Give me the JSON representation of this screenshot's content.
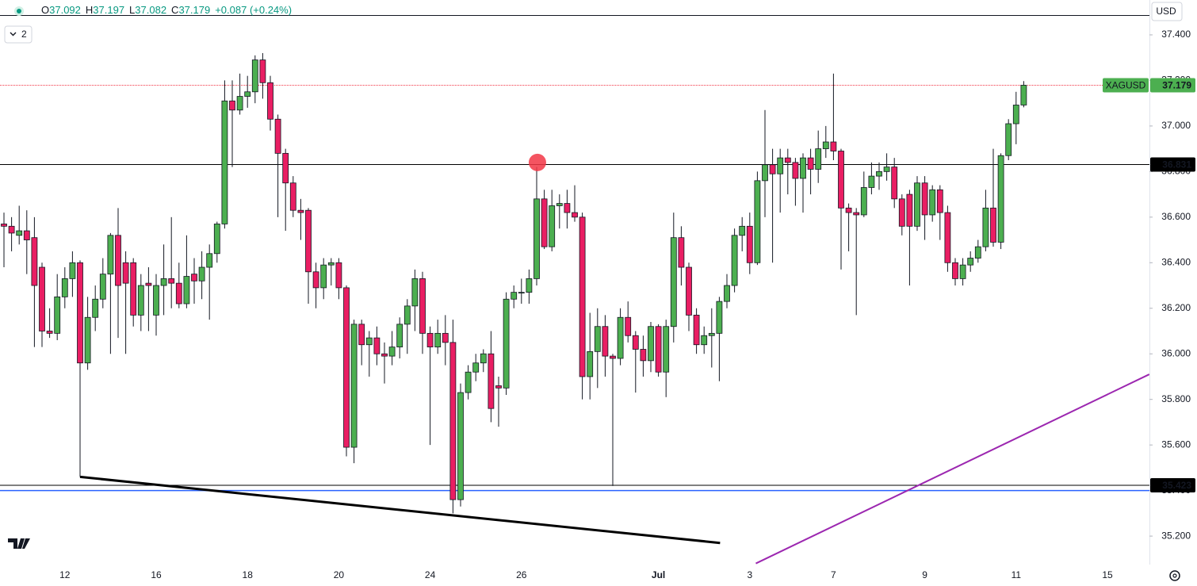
{
  "chart_data": {
    "type": "candlestick",
    "symbol": "XAGUSD",
    "currency": "USD",
    "indicator_count": 2,
    "header": {
      "items": [
        {
          "label": "O",
          "value": "37.092"
        },
        {
          "label": "H",
          "value": "37.197"
        },
        {
          "label": "L",
          "value": "37.082"
        },
        {
          "label": "C",
          "value": "37.179"
        }
      ],
      "change": "+0.087 (+0.24%)"
    },
    "up_color": "#4caf50",
    "down_color": "#e91e63",
    "grid": false,
    "categories": [
      null,
      null,
      null,
      null,
      null,
      null,
      null,
      null,
      "12",
      null,
      null,
      null,
      null,
      null,
      null,
      null,
      null,
      null,
      null,
      null,
      "16",
      null,
      null,
      null,
      null,
      null,
      null,
      null,
      null,
      null,
      null,
      null,
      "18",
      null,
      null,
      null,
      null,
      null,
      null,
      null,
      null,
      null,
      null,
      null,
      "20",
      null,
      null,
      null,
      null,
      null,
      null,
      null,
      null,
      null,
      null,
      null,
      "24",
      null,
      null,
      null,
      null,
      null,
      null,
      null,
      null,
      null,
      null,
      null,
      "26",
      null,
      null,
      null,
      null,
      null,
      null,
      null,
      null,
      null,
      null,
      null,
      null,
      null,
      null,
      null,
      null,
      null,
      "Jul",
      null,
      null,
      null,
      null,
      null,
      null,
      null,
      null,
      null,
      null,
      null,
      "3",
      null,
      null,
      null,
      null,
      null,
      null,
      null,
      null,
      null,
      null,
      "7",
      null,
      null,
      null,
      null,
      null,
      null,
      null,
      null,
      null,
      null,
      null,
      "9",
      null,
      null,
      null,
      null,
      null,
      null,
      null,
      null,
      null,
      null,
      null,
      "11",
      null,
      null,
      null,
      null,
      null,
      null,
      null,
      null,
      null,
      null,
      null,
      "15"
    ],
    "open": [
      36.57,
      36.56,
      36.52,
      36.54,
      36.51,
      36.38,
      36.1,
      36.09,
      36.25,
      36.33,
      36.4,
      35.96,
      36.16,
      36.24,
      36.35,
      36.52,
      36.4,
      36.4,
      36.17,
      36.31,
      36.17,
      36.3,
      36.33,
      36.31,
      36.22,
      36.35,
      36.32,
      36.38,
      36.44,
      36.57,
      37.11,
      37.07,
      37.13,
      37.15,
      37.29,
      37.19,
      37.03,
      36.88,
      36.75,
      36.63,
      36.63,
      36.36,
      36.29,
      36.39,
      36.4,
      36.29,
      35.59,
      36.13,
      36.04,
      36.07,
      36.0,
      35.99,
      36.03,
      36.13,
      36.21,
      36.33,
      36.09,
      36.03,
      36.09,
      36.05,
      35.36,
      35.83,
      35.92,
      35.96,
      36.0,
      35.86,
      35.85,
      36.24,
      36.27,
      36.27,
      36.33,
      36.68,
      36.47,
      36.65,
      36.66,
      36.62,
      36.6,
      35.9,
      36.01,
      36.12,
      35.99,
      35.98,
      36.16,
      36.08,
      36.02,
      35.97,
      36.12,
      35.92,
      36.12,
      36.51,
      36.38,
      36.17,
      36.04,
      36.08,
      36.09,
      36.23,
      36.3,
      36.52,
      36.56,
      36.4,
      36.76,
      36.83,
      36.79,
      36.86,
      36.84,
      36.77,
      36.86,
      36.81,
      36.9,
      36.93,
      36.89,
      36.64,
      36.62,
      36.61,
      36.73,
      36.78,
      36.8,
      36.82,
      36.68,
      36.7,
      36.56,
      36.75,
      36.61,
      36.72,
      36.62,
      36.4,
      36.33,
      36.39,
      36.42,
      36.47,
      36.64,
      36.49,
      36.87,
      37.01,
      37.092,
      null,
      null,
      null,
      null,
      null,
      null,
      null,
      null,
      null,
      null,
      null
    ],
    "high": [
      36.62,
      36.6,
      36.65,
      36.63,
      36.6,
      36.4,
      36.2,
      36.35,
      36.38,
      36.45,
      36.41,
      36.25,
      36.3,
      36.42,
      36.53,
      36.64,
      36.45,
      36.42,
      36.35,
      36.38,
      36.35,
      36.48,
      36.6,
      36.4,
      36.52,
      36.42,
      36.45,
      36.48,
      36.58,
      37.2,
      37.2,
      37.23,
      37.22,
      37.31,
      37.32,
      37.22,
      37.05,
      36.9,
      36.78,
      36.68,
      36.64,
      36.4,
      36.42,
      36.42,
      36.42,
      36.3,
      36.15,
      36.15,
      36.1,
      36.12,
      36.05,
      36.1,
      36.16,
      36.24,
      36.37,
      36.36,
      36.12,
      36.15,
      36.17,
      36.15,
      35.87,
      35.95,
      36.0,
      36.02,
      36.1,
      35.9,
      36.27,
      36.3,
      36.33,
      36.37,
      36.82,
      36.72,
      36.72,
      36.7,
      36.72,
      36.74,
      36.62,
      36.18,
      36.2,
      36.17,
      36.0,
      36.2,
      36.23,
      36.1,
      36.08,
      36.14,
      36.13,
      36.15,
      36.62,
      36.56,
      36.4,
      36.2,
      36.12,
      36.2,
      36.25,
      36.35,
      36.55,
      36.6,
      36.62,
      36.8,
      37.07,
      36.9,
      36.9,
      36.9,
      36.86,
      36.88,
      36.9,
      36.98,
      37.0,
      37.23,
      36.9,
      36.66,
      36.64,
      36.8,
      36.84,
      36.84,
      36.88,
      36.86,
      36.7,
      36.72,
      36.78,
      36.78,
      36.74,
      36.74,
      36.65,
      36.42,
      36.42,
      36.45,
      36.5,
      36.72,
      36.9,
      36.88,
      37.03,
      37.15,
      37.197,
      null,
      null,
      null,
      null,
      null,
      null,
      null,
      null,
      null,
      null,
      null
    ],
    "low": [
      36.38,
      36.45,
      36.48,
      36.35,
      36.03,
      36.03,
      36.07,
      36.06,
      36.2,
      36.25,
      35.46,
      35.93,
      36.1,
      36.2,
      36.0,
      36.07,
      36.0,
      36.12,
      36.1,
      36.1,
      36.08,
      36.17,
      36.2,
      36.2,
      36.2,
      36.22,
      36.24,
      36.15,
      36.4,
      36.55,
      36.82,
      37.05,
      37.08,
      37.1,
      37.12,
      36.98,
      36.6,
      36.54,
      36.6,
      36.5,
      36.22,
      36.2,
      36.24,
      36.3,
      36.24,
      35.55,
      35.52,
      35.95,
      35.9,
      35.95,
      35.87,
      35.95,
      35.98,
      36.0,
      36.1,
      36.0,
      35.6,
      36.0,
      35.95,
      35.3,
      35.33,
      35.8,
      35.88,
      35.92,
      35.7,
      35.68,
      35.82,
      36.2,
      36.22,
      36.22,
      36.3,
      36.46,
      36.45,
      36.55,
      36.55,
      36.58,
      35.8,
      35.8,
      35.85,
      35.9,
      35.42,
      35.95,
      36.05,
      35.83,
      35.9,
      35.92,
      35.9,
      35.81,
      36.05,
      36.3,
      36.1,
      36.0,
      36.0,
      35.94,
      35.88,
      36.2,
      36.27,
      36.45,
      36.35,
      36.39,
      36.6,
      36.4,
      36.62,
      36.7,
      36.65,
      36.62,
      36.7,
      36.75,
      36.86,
      36.85,
      36.37,
      36.45,
      36.17,
      36.6,
      36.7,
      36.72,
      36.76,
      36.64,
      36.52,
      36.3,
      36.54,
      36.5,
      36.58,
      36.5,
      36.36,
      36.3,
      36.3,
      36.36,
      36.4,
      36.45,
      36.47,
      36.46,
      36.85,
      36.92,
      37.082,
      null,
      null,
      null,
      null,
      null,
      null,
      null,
      null,
      null,
      null,
      null
    ],
    "close": [
      36.56,
      36.53,
      36.54,
      36.5,
      36.3,
      36.1,
      36.09,
      36.25,
      36.33,
      36.4,
      35.96,
      36.16,
      36.24,
      36.35,
      36.52,
      36.3,
      36.31,
      36.17,
      36.3,
      36.3,
      36.3,
      36.33,
      36.31,
      36.22,
      36.34,
      36.32,
      36.38,
      36.44,
      36.57,
      37.11,
      37.07,
      37.13,
      37.15,
      37.29,
      37.19,
      37.03,
      36.88,
      36.75,
      36.63,
      36.62,
      36.36,
      36.29,
      36.39,
      36.4,
      36.29,
      35.59,
      36.13,
      36.04,
      36.07,
      36.0,
      35.99,
      36.03,
      36.13,
      36.21,
      36.33,
      36.09,
      36.03,
      36.09,
      36.05,
      35.36,
      35.83,
      35.92,
      35.96,
      36.0,
      35.76,
      35.85,
      36.24,
      36.27,
      36.27,
      36.33,
      36.68,
      36.47,
      36.65,
      36.66,
      36.62,
      36.6,
      35.9,
      36.01,
      36.12,
      35.99,
      35.98,
      36.16,
      36.08,
      36.02,
      35.97,
      36.12,
      35.92,
      36.12,
      36.51,
      36.38,
      36.17,
      36.04,
      36.08,
      36.09,
      36.23,
      36.3,
      36.52,
      36.56,
      36.4,
      36.76,
      36.83,
      36.79,
      36.86,
      36.84,
      36.77,
      36.86,
      36.81,
      36.9,
      36.93,
      36.89,
      36.64,
      36.62,
      36.61,
      36.73,
      36.78,
      36.8,
      36.82,
      36.68,
      36.56,
      36.56,
      36.75,
      36.61,
      36.72,
      36.62,
      36.4,
      36.33,
      36.39,
      36.42,
      36.47,
      36.64,
      36.49,
      36.87,
      37.01,
      37.092,
      37.179,
      null,
      null,
      null,
      null,
      null,
      null,
      null,
      null,
      null,
      null,
      null
    ],
    "ylim": [
      35.075,
      37.553
    ],
    "yticks": [
      {
        "value": 37.4,
        "label": "37.400"
      },
      {
        "value": 37.2,
        "label": "37.200"
      },
      {
        "value": 37.0,
        "label": "37.000"
      },
      {
        "value": 36.8,
        "label": "36.800"
      },
      {
        "value": 36.6,
        "label": "36.600"
      },
      {
        "value": 36.4,
        "label": "36.400"
      },
      {
        "value": 36.2,
        "label": "36.200"
      },
      {
        "value": 36.0,
        "label": "36.000"
      },
      {
        "value": 35.8,
        "label": "35.800"
      },
      {
        "value": 35.6,
        "label": "35.600"
      },
      {
        "value": 35.4,
        "label": "35.400"
      },
      {
        "value": 35.2,
        "label": "35.200"
      }
    ],
    "price_lines": [
      {
        "value": 37.179,
        "color": "#f23645",
        "style": "dotted",
        "tag": "XAGUSD",
        "label_color": "#4caf50"
      },
      {
        "value": 36.831,
        "color": "#000000",
        "style": "solid",
        "label_color": "#000000"
      },
      {
        "value": 35.423,
        "color": "#000000",
        "style": "solid",
        "label_color": "#000000"
      },
      {
        "value": 35.4,
        "color": "#2962ff",
        "style": "solid"
      }
    ],
    "trendlines": [
      {
        "x": [
          10,
          94.1
        ],
        "y": [
          35.46,
          35.17
        ],
        "color": "#000000",
        "width": 3
      },
      {
        "x": [
          98.8,
          150.5
        ],
        "y": [
          35.08,
          35.91
        ],
        "color": "#9c27b0",
        "width": 2
      }
    ],
    "markers": [
      {
        "x": 70.1,
        "value": 36.84,
        "color": "#f23645"
      }
    ]
  }
}
